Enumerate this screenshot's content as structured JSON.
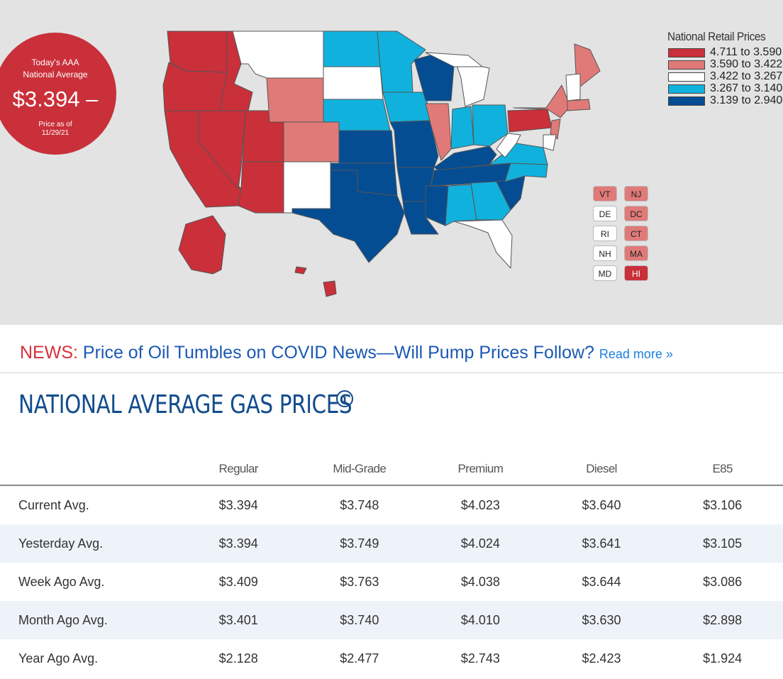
{
  "badge": {
    "line1": "Today's AAA",
    "line2": "National Average",
    "price": "$3.394",
    "trend_symbol": "–",
    "asof_label": "Price as of",
    "asof_date": "11/29/21"
  },
  "legend": {
    "title": "National Retail Prices",
    "items": [
      {
        "range": "4.711 to 3.590",
        "color": "#c9303a"
      },
      {
        "range": "3.590 to 3.422",
        "color": "#e07a78"
      },
      {
        "range": "3.422 to 3.267",
        "color": "#ffffff"
      },
      {
        "range": "3.267 to 3.140",
        "color": "#10b2dd"
      },
      {
        "range": "3.139 to 2.940",
        "color": "#054d92"
      }
    ]
  },
  "small_states": [
    {
      "abbr": "VT",
      "color": "#e07a78"
    },
    {
      "abbr": "NJ",
      "color": "#e07a78"
    },
    {
      "abbr": "DE",
      "color": "#ffffff"
    },
    {
      "abbr": "DC",
      "color": "#e07a78"
    },
    {
      "abbr": "RI",
      "color": "#ffffff"
    },
    {
      "abbr": "CT",
      "color": "#e07a78"
    },
    {
      "abbr": "NH",
      "color": "#ffffff"
    },
    {
      "abbr": "MA",
      "color": "#e07a78"
    },
    {
      "abbr": "MD",
      "color": "#ffffff"
    },
    {
      "abbr": "HI",
      "color": "#c9303a"
    }
  ],
  "news": {
    "tag": "NEWS:",
    "headline": "Price of Oil Tumbles on COVID News—Will Pump Prices Follow?",
    "link": "Read more »"
  },
  "section_title": "NATIONAL AVERAGE GAS PRICES",
  "table": {
    "headers": [
      "",
      "Regular",
      "Mid-Grade",
      "Premium",
      "Diesel",
      "E85"
    ],
    "rows": [
      {
        "label": "Current Avg.",
        "values": [
          "$3.394",
          "$3.748",
          "$4.023",
          "$3.640",
          "$3.106"
        ]
      },
      {
        "label": "Yesterday Avg.",
        "values": [
          "$3.394",
          "$3.749",
          "$4.024",
          "$3.641",
          "$3.105"
        ]
      },
      {
        "label": "Week Ago Avg.",
        "values": [
          "$3.409",
          "$3.763",
          "$4.038",
          "$3.644",
          "$3.086"
        ]
      },
      {
        "label": "Month Ago Avg.",
        "values": [
          "$3.401",
          "$3.740",
          "$4.010",
          "$3.630",
          "$2.898"
        ]
      },
      {
        "label": "Year Ago Avg.",
        "values": [
          "$2.128",
          "$2.477",
          "$2.743",
          "$2.423",
          "$1.924"
        ]
      }
    ]
  }
}
